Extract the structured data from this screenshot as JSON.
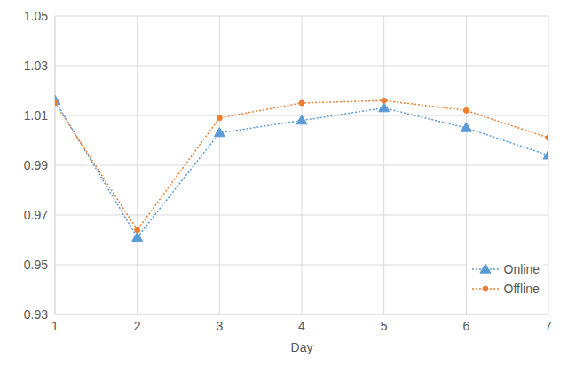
{
  "chart_data": {
    "type": "line",
    "x_label": "Day",
    "x": [
      1,
      2,
      3,
      4,
      5,
      6,
      7
    ],
    "series": [
      {
        "name": "Online",
        "color": "#5b9bd5",
        "marker": "triangle",
        "line_style": "dotted",
        "values": [
          1.016,
          0.961,
          1.003,
          1.008,
          1.013,
          1.005,
          0.994
        ]
      },
      {
        "name": "Offline",
        "color": "#ed7d31",
        "marker": "circle",
        "line_style": "dotted",
        "values": [
          1.015,
          0.964,
          1.009,
          1.015,
          1.016,
          1.012,
          1.001
        ]
      }
    ],
    "xlim": [
      1,
      7
    ],
    "xticks": [
      1,
      2,
      3,
      4,
      5,
      6,
      7
    ],
    "ylim": [
      0.93,
      1.05
    ],
    "yticks": [
      0.93,
      0.95,
      0.97,
      0.99,
      1.01,
      1.03,
      1.05
    ],
    "grid": true,
    "legend": "lower right"
  }
}
